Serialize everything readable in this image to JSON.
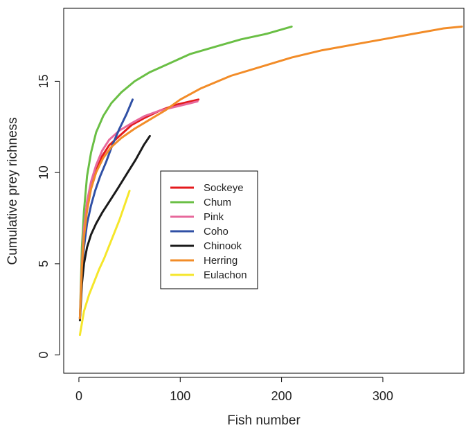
{
  "chart_data": {
    "type": "line",
    "title": "",
    "xlabel": "Fish number",
    "ylabel": "Cumulative prey richness",
    "xlim": [
      -15,
      380
    ],
    "ylim": [
      -1,
      19
    ],
    "xticks": [
      0,
      100,
      200,
      300
    ],
    "yticks": [
      0,
      5,
      10,
      15
    ],
    "grid": false,
    "legend_position": "center",
    "series": [
      {
        "name": "Sockeye",
        "color": "#e41a1c",
        "x": [
          1,
          3,
          5,
          8,
          12,
          17,
          23,
          30,
          40,
          52,
          65,
          80,
          95,
          110,
          118
        ],
        "y": [
          2.0,
          4.9,
          6.6,
          8.0,
          9.2,
          10.1,
          10.9,
          11.5,
          12.0,
          12.6,
          13.0,
          13.4,
          13.7,
          13.9,
          14.0
        ]
      },
      {
        "name": "Chum",
        "color": "#6abf45",
        "x": [
          1,
          3,
          5,
          8,
          12,
          17,
          24,
          32,
          42,
          55,
          70,
          90,
          110,
          135,
          160,
          185,
          210
        ],
        "y": [
          2.0,
          5.9,
          7.9,
          9.8,
          11.1,
          12.2,
          13.1,
          13.8,
          14.4,
          15.0,
          15.5,
          16.0,
          16.5,
          16.9,
          17.3,
          17.6,
          18.0
        ]
      },
      {
        "name": "Pink",
        "color": "#e7689b",
        "x": [
          1,
          3,
          5,
          8,
          12,
          17,
          23,
          30,
          40,
          52,
          65,
          80,
          95,
          110,
          117
        ],
        "y": [
          2.0,
          5.0,
          6.9,
          8.4,
          9.5,
          10.4,
          11.2,
          11.8,
          12.3,
          12.7,
          13.1,
          13.4,
          13.6,
          13.8,
          13.9
        ]
      },
      {
        "name": "Coho",
        "color": "#3050a5",
        "x": [
          1,
          3,
          5,
          8,
          12,
          16,
          21,
          27,
          33,
          40,
          47,
          53
        ],
        "y": [
          2.0,
          4.5,
          5.9,
          7.2,
          8.2,
          9.0,
          9.8,
          10.6,
          11.5,
          12.4,
          13.2,
          14.0
        ]
      },
      {
        "name": "Chinook",
        "color": "#1a1a1a",
        "x": [
          1,
          3,
          5,
          8,
          12,
          17,
          23,
          30,
          38,
          47,
          56,
          64,
          70
        ],
        "y": [
          1.9,
          3.9,
          5.0,
          5.9,
          6.6,
          7.2,
          7.8,
          8.4,
          9.1,
          9.9,
          10.7,
          11.5,
          12.0
        ]
      },
      {
        "name": "Herring",
        "color": "#f28c28",
        "x": [
          1,
          3,
          5,
          8,
          12,
          17,
          24,
          32,
          42,
          55,
          70,
          85,
          100,
          120,
          150,
          180,
          210,
          240,
          270,
          300,
          330,
          360,
          378
        ],
        "y": [
          2.0,
          4.8,
          6.5,
          7.9,
          9.1,
          10.0,
          10.8,
          11.4,
          11.9,
          12.4,
          12.9,
          13.4,
          14.0,
          14.6,
          15.3,
          15.8,
          16.3,
          16.7,
          17.0,
          17.3,
          17.6,
          17.9,
          18.0
        ]
      },
      {
        "name": "Eulachon",
        "color": "#f5e62a",
        "x": [
          1,
          5,
          10,
          15,
          20,
          25,
          30,
          35,
          40,
          45,
          50
        ],
        "y": [
          1.1,
          2.4,
          3.3,
          4.0,
          4.7,
          5.3,
          6.0,
          6.7,
          7.4,
          8.2,
          9.0
        ]
      }
    ]
  }
}
